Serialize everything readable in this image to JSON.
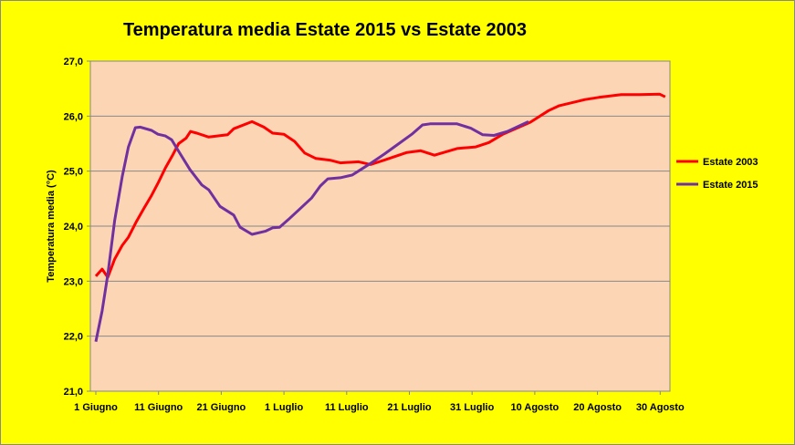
{
  "chart_data": {
    "type": "line",
    "title": "Temperatura media Estate 2015 vs Estate 2003",
    "xlabel": "",
    "ylabel": "Temperatura media  (°C)",
    "ylim": [
      21,
      27
    ],
    "yticks": [
      "21,0",
      "22,0",
      "23,0",
      "24,0",
      "25,0",
      "26,0",
      "27,0"
    ],
    "xlim": [
      -1,
      92
    ],
    "x_unit": "days since 1 June",
    "xticks": [
      {
        "day": 0,
        "label": "1 Giugno"
      },
      {
        "day": 10,
        "label": "11 Giugno"
      },
      {
        "day": 20,
        "label": "21 Giugno"
      },
      {
        "day": 30,
        "label": "1 Luglio"
      },
      {
        "day": 40,
        "label": "11 Luglio"
      },
      {
        "day": 50,
        "label": "21 Luglio"
      },
      {
        "day": 60,
        "label": "31 Luglio"
      },
      {
        "day": 70,
        "label": "10 Agosto"
      },
      {
        "day": 80,
        "label": "20 Agosto"
      },
      {
        "day": 90,
        "label": "30 Agosto"
      }
    ],
    "grid": true,
    "legend": "right",
    "series": [
      {
        "name": "Estate 2003",
        "color": "#ff0000",
        "points": [
          [
            0,
            23.09
          ],
          [
            1,
            23.22
          ],
          [
            1.9,
            23.07
          ],
          [
            3,
            23.4
          ],
          [
            4.2,
            23.65
          ],
          [
            5.2,
            23.8
          ],
          [
            6.4,
            24.07
          ],
          [
            7.7,
            24.33
          ],
          [
            8.9,
            24.56
          ],
          [
            10,
            24.8
          ],
          [
            11.1,
            25.06
          ],
          [
            12.2,
            25.28
          ],
          [
            13.2,
            25.5
          ],
          [
            14.4,
            25.6
          ],
          [
            15.1,
            25.72
          ],
          [
            16.1,
            25.69
          ],
          [
            18,
            25.62
          ],
          [
            21,
            25.66
          ],
          [
            22,
            25.77
          ],
          [
            24.9,
            25.9
          ],
          [
            26.8,
            25.8
          ],
          [
            28.2,
            25.69
          ],
          [
            30,
            25.67
          ],
          [
            31.7,
            25.54
          ],
          [
            33.3,
            25.33
          ],
          [
            35.1,
            25.23
          ],
          [
            37.3,
            25.2
          ],
          [
            39,
            25.15
          ],
          [
            41.9,
            25.17
          ],
          [
            43.8,
            25.12
          ],
          [
            46,
            25.2
          ],
          [
            49.6,
            25.34
          ],
          [
            51.8,
            25.37
          ],
          [
            54,
            25.29
          ],
          [
            57.6,
            25.41
          ],
          [
            60.6,
            25.44
          ],
          [
            62.7,
            25.52
          ],
          [
            64.9,
            25.67
          ],
          [
            69.3,
            25.89
          ],
          [
            72.2,
            26.1
          ],
          [
            73.9,
            26.19
          ],
          [
            78,
            26.3
          ],
          [
            80.2,
            26.34
          ],
          [
            83.8,
            26.39
          ],
          [
            86.7,
            26.39
          ],
          [
            89.9,
            26.4
          ],
          [
            90.8,
            26.35
          ]
        ]
      },
      {
        "name": "Estate 2015",
        "color": "#7030a0",
        "points": [
          [
            0,
            21.9
          ],
          [
            1,
            22.46
          ],
          [
            1.9,
            23.12
          ],
          [
            3,
            24.1
          ],
          [
            4.2,
            24.9
          ],
          [
            5.2,
            25.44
          ],
          [
            6.3,
            25.79
          ],
          [
            7.1,
            25.8
          ],
          [
            8.9,
            25.74
          ],
          [
            9.9,
            25.67
          ],
          [
            11.1,
            25.64
          ],
          [
            12.1,
            25.57
          ],
          [
            13.2,
            25.36
          ],
          [
            15,
            25.03
          ],
          [
            16.9,
            24.75
          ],
          [
            18,
            24.66
          ],
          [
            19.8,
            24.36
          ],
          [
            22,
            24.2
          ],
          [
            23,
            23.98
          ],
          [
            24.9,
            23.85
          ],
          [
            27.1,
            23.91
          ],
          [
            28.2,
            23.97
          ],
          [
            29.3,
            23.98
          ],
          [
            30.7,
            24.12
          ],
          [
            32.5,
            24.31
          ],
          [
            34.4,
            24.51
          ],
          [
            35.8,
            24.73
          ],
          [
            37,
            24.86
          ],
          [
            39,
            24.88
          ],
          [
            40.9,
            24.93
          ],
          [
            42.4,
            25.04
          ],
          [
            43.8,
            25.14
          ],
          [
            46,
            25.31
          ],
          [
            48.2,
            25.49
          ],
          [
            50.4,
            25.67
          ],
          [
            52.1,
            25.84
          ],
          [
            53.3,
            25.86
          ],
          [
            57.6,
            25.86
          ],
          [
            59.8,
            25.78
          ],
          [
            61.7,
            25.66
          ],
          [
            63.5,
            25.65
          ],
          [
            65.6,
            25.72
          ],
          [
            69,
            25.9
          ]
        ]
      }
    ]
  }
}
